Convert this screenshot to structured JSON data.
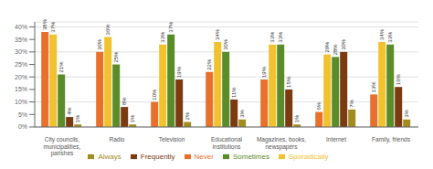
{
  "chart_data": {
    "type": "bar",
    "categories": [
      "City councils,\nmunicipalities,\nparishes",
      "Radio",
      "Television",
      "Educational\ninstitutions",
      "Magazines, books,\nnewspapers",
      "Internet",
      "Family, friends"
    ],
    "series": [
      {
        "name": "Never",
        "color": "#E8702A",
        "values": [
          38,
          30,
          10,
          22,
          19,
          6,
          13
        ],
        "value_labels": [
          "38%",
          "30%",
          "10%",
          "22%",
          "19%",
          "6%",
          "13%"
        ]
      },
      {
        "name": "Sporadically",
        "color": "#F2C12E",
        "values": [
          37,
          36,
          33,
          34,
          33,
          29,
          34
        ],
        "value_labels": [
          "37%",
          "36%",
          "33%",
          "34%",
          "33%",
          "29%",
          "34%"
        ]
      },
      {
        "name": "Sometimes",
        "color": "#5B8C2A",
        "values": [
          21,
          25,
          37,
          30,
          33,
          28,
          33
        ],
        "value_labels": [
          "21%",
          "25%",
          "37%",
          "30%",
          "33%",
          "28%",
          "33%"
        ]
      },
      {
        "name": "Frequently",
        "color": "#7B3A10",
        "values": [
          4,
          8,
          19,
          11,
          15,
          30,
          16
        ],
        "value_labels": [
          "4%",
          "8%",
          "19%",
          "11%",
          "15%",
          "30%",
          "16%"
        ]
      },
      {
        "name": "Always",
        "color": "#A08C20",
        "values": [
          1,
          1,
          2,
          3,
          1,
          7,
          3
        ],
        "value_labels": [
          "1%",
          "1%",
          "2%",
          "3%",
          "1%",
          "7%",
          "3%"
        ]
      }
    ],
    "ylim": [
      0,
      42
    ],
    "yticks": [
      {
        "value": 0,
        "label": "0%"
      },
      {
        "value": 5,
        "label": "5%"
      },
      {
        "value": 10,
        "label": "10%"
      },
      {
        "value": 15,
        "label": "15%"
      },
      {
        "value": 20,
        "label": "20%"
      },
      {
        "value": 25,
        "label": "25%"
      },
      {
        "value": 30,
        "label": "30%"
      },
      {
        "value": 35,
        "label": "35%"
      },
      {
        "value": 40,
        "label": "40%"
      }
    ],
    "grid": true,
    "legend": "bottom",
    "data_labels": true
  }
}
